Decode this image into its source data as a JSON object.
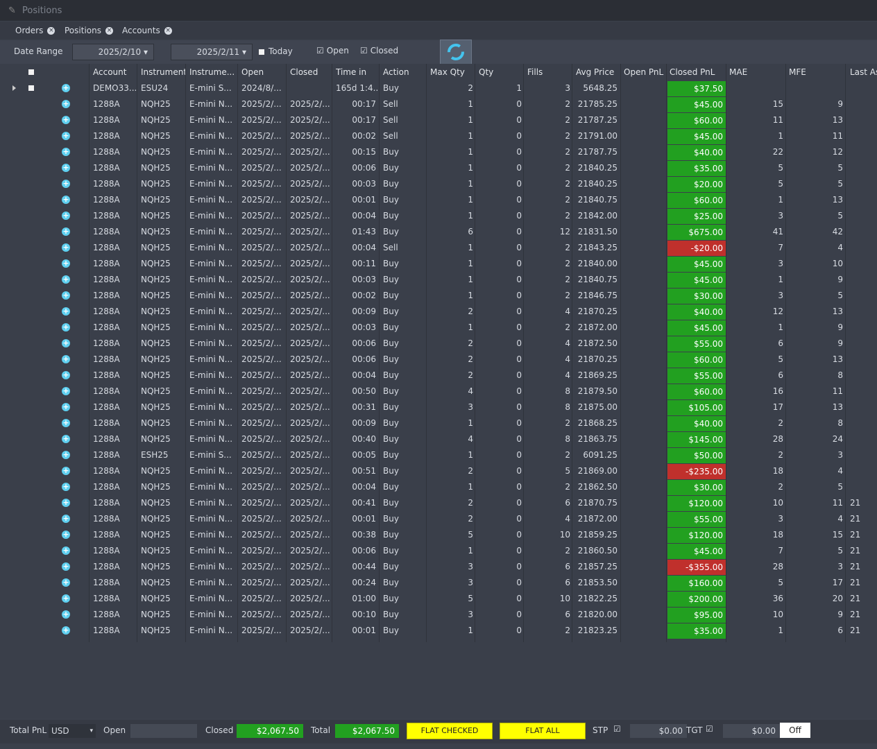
{
  "window": {
    "title": "Positions"
  },
  "tabs": [
    "Orders",
    "Positions",
    "Accounts"
  ],
  "filter": {
    "date_range_label": "Date Range",
    "from": "2025/2/10",
    "to": "2025/2/11",
    "today": "Today",
    "open": "Open",
    "closed": "Closed"
  },
  "table": {
    "columns": [
      "Account",
      "Instrument",
      "Instrume...",
      "Open",
      "Closed",
      "Time in",
      "Action",
      "Max Qty",
      "Qty",
      "Fills",
      "Avg Price",
      "Open PnL",
      "Closed PnL",
      "MAE",
      "MFE",
      "Last As"
    ],
    "rows": [
      [
        "DEMO33...",
        "ESU24",
        "E-mini S...",
        "2024/8/...",
        null,
        "165d 1:4...",
        "Buy",
        "2",
        "1",
        "3",
        "5648.25",
        null,
        "$37.50",
        null,
        null,
        null
      ],
      [
        "1288A",
        "NQH25",
        "E-mini N...",
        "2025/2/...",
        "2025/2/...",
        "00:17",
        "Sell",
        "1",
        "0",
        "2",
        "21785.25",
        null,
        "$45.00",
        "15",
        "9",
        null
      ],
      [
        "1288A",
        "NQH25",
        "E-mini N...",
        "2025/2/...",
        "2025/2/...",
        "00:17",
        "Sell",
        "1",
        "0",
        "2",
        "21787.25",
        null,
        "$60.00",
        "11",
        "13",
        null
      ],
      [
        "1288A",
        "NQH25",
        "E-mini N...",
        "2025/2/...",
        "2025/2/...",
        "00:02",
        "Sell",
        "1",
        "0",
        "2",
        "21791.00",
        null,
        "$45.00",
        "1",
        "11",
        null
      ],
      [
        "1288A",
        "NQH25",
        "E-mini N...",
        "2025/2/...",
        "2025/2/...",
        "00:15",
        "Buy",
        "1",
        "0",
        "2",
        "21787.75",
        null,
        "$40.00",
        "22",
        "12",
        null
      ],
      [
        "1288A",
        "NQH25",
        "E-mini N...",
        "2025/2/...",
        "2025/2/...",
        "00:06",
        "Buy",
        "1",
        "0",
        "2",
        "21840.25",
        null,
        "$35.00",
        "5",
        "5",
        null
      ],
      [
        "1288A",
        "NQH25",
        "E-mini N...",
        "2025/2/...",
        "2025/2/...",
        "00:03",
        "Buy",
        "1",
        "0",
        "2",
        "21840.25",
        null,
        "$20.00",
        "5",
        "5",
        null
      ],
      [
        "1288A",
        "NQH25",
        "E-mini N...",
        "2025/2/...",
        "2025/2/...",
        "00:01",
        "Buy",
        "1",
        "0",
        "2",
        "21840.75",
        null,
        "$60.00",
        "1",
        "13",
        null
      ],
      [
        "1288A",
        "NQH25",
        "E-mini N...",
        "2025/2/...",
        "2025/2/...",
        "00:04",
        "Buy",
        "1",
        "0",
        "2",
        "21842.00",
        null,
        "$25.00",
        "3",
        "5",
        null
      ],
      [
        "1288A",
        "NQH25",
        "E-mini N...",
        "2025/2/...",
        "2025/2/...",
        "01:43",
        "Buy",
        "6",
        "0",
        "12",
        "21831.50",
        null,
        "$675.00",
        "41",
        "42",
        null
      ],
      [
        "1288A",
        "NQH25",
        "E-mini N...",
        "2025/2/...",
        "2025/2/...",
        "00:04",
        "Sell",
        "1",
        "0",
        "2",
        "21843.25",
        null,
        "-$20.00",
        "7",
        "4",
        null
      ],
      [
        "1288A",
        "NQH25",
        "E-mini N...",
        "2025/2/...",
        "2025/2/...",
        "00:11",
        "Buy",
        "1",
        "0",
        "2",
        "21840.00",
        null,
        "$45.00",
        "3",
        "10",
        null
      ],
      [
        "1288A",
        "NQH25",
        "E-mini N...",
        "2025/2/...",
        "2025/2/...",
        "00:03",
        "Buy",
        "1",
        "0",
        "2",
        "21840.75",
        null,
        "$45.00",
        "1",
        "9",
        null
      ],
      [
        "1288A",
        "NQH25",
        "E-mini N...",
        "2025/2/...",
        "2025/2/...",
        "00:02",
        "Buy",
        "1",
        "0",
        "2",
        "21846.75",
        null,
        "$30.00",
        "3",
        "5",
        null
      ],
      [
        "1288A",
        "NQH25",
        "E-mini N...",
        "2025/2/...",
        "2025/2/...",
        "00:09",
        "Buy",
        "2",
        "0",
        "4",
        "21870.25",
        null,
        "$40.00",
        "12",
        "13",
        null
      ],
      [
        "1288A",
        "NQH25",
        "E-mini N...",
        "2025/2/...",
        "2025/2/...",
        "00:03",
        "Buy",
        "1",
        "0",
        "2",
        "21872.00",
        null,
        "$45.00",
        "1",
        "9",
        null
      ],
      [
        "1288A",
        "NQH25",
        "E-mini N...",
        "2025/2/...",
        "2025/2/...",
        "00:06",
        "Buy",
        "2",
        "0",
        "4",
        "21872.50",
        null,
        "$55.00",
        "6",
        "9",
        null
      ],
      [
        "1288A",
        "NQH25",
        "E-mini N...",
        "2025/2/...",
        "2025/2/...",
        "00:06",
        "Buy",
        "2",
        "0",
        "4",
        "21870.25",
        null,
        "$60.00",
        "5",
        "13",
        null
      ],
      [
        "1288A",
        "NQH25",
        "E-mini N...",
        "2025/2/...",
        "2025/2/...",
        "00:04",
        "Buy",
        "2",
        "0",
        "4",
        "21869.25",
        null,
        "$55.00",
        "6",
        "8",
        null
      ],
      [
        "1288A",
        "NQH25",
        "E-mini N...",
        "2025/2/...",
        "2025/2/...",
        "00:50",
        "Buy",
        "4",
        "0",
        "8",
        "21879.50",
        null,
        "$60.00",
        "16",
        "11",
        null
      ],
      [
        "1288A",
        "NQH25",
        "E-mini N...",
        "2025/2/...",
        "2025/2/...",
        "00:31",
        "Buy",
        "3",
        "0",
        "8",
        "21875.00",
        null,
        "$105.00",
        "17",
        "13",
        null
      ],
      [
        "1288A",
        "NQH25",
        "E-mini N...",
        "2025/2/...",
        "2025/2/...",
        "00:09",
        "Buy",
        "1",
        "0",
        "2",
        "21868.25",
        null,
        "$40.00",
        "2",
        "8",
        null
      ],
      [
        "1288A",
        "NQH25",
        "E-mini N...",
        "2025/2/...",
        "2025/2/...",
        "00:40",
        "Buy",
        "4",
        "0",
        "8",
        "21863.75",
        null,
        "$145.00",
        "28",
        "24",
        null
      ],
      [
        "1288A",
        "ESH25",
        "E-mini S...",
        "2025/2/...",
        "2025/2/...",
        "00:05",
        "Buy",
        "1",
        "0",
        "2",
        "6091.25",
        null,
        "$50.00",
        "2",
        "3",
        null
      ],
      [
        "1288A",
        "NQH25",
        "E-mini N...",
        "2025/2/...",
        "2025/2/...",
        "00:51",
        "Buy",
        "2",
        "0",
        "5",
        "21869.00",
        null,
        "-$235.00",
        "18",
        "4",
        null
      ],
      [
        "1288A",
        "NQH25",
        "E-mini N...",
        "2025/2/...",
        "2025/2/...",
        "00:04",
        "Buy",
        "1",
        "0",
        "2",
        "21862.50",
        null,
        "$30.00",
        "2",
        "5",
        null
      ],
      [
        "1288A",
        "NQH25",
        "E-mini N...",
        "2025/2/...",
        "2025/2/...",
        "00:41",
        "Buy",
        "2",
        "0",
        "6",
        "21870.75",
        null,
        "$120.00",
        "10",
        "11",
        "21"
      ],
      [
        "1288A",
        "NQH25",
        "E-mini N...",
        "2025/2/...",
        "2025/2/...",
        "00:01",
        "Buy",
        "2",
        "0",
        "4",
        "21872.00",
        null,
        "$55.00",
        "3",
        "4",
        "21"
      ],
      [
        "1288A",
        "NQH25",
        "E-mini N...",
        "2025/2/...",
        "2025/2/...",
        "00:38",
        "Buy",
        "5",
        "0",
        "10",
        "21859.25",
        null,
        "$120.00",
        "18",
        "15",
        "21"
      ],
      [
        "1288A",
        "NQH25",
        "E-mini N...",
        "2025/2/...",
        "2025/2/...",
        "00:06",
        "Buy",
        "1",
        "0",
        "2",
        "21860.50",
        null,
        "$45.00",
        "7",
        "5",
        "21"
      ],
      [
        "1288A",
        "NQH25",
        "E-mini N...",
        "2025/2/...",
        "2025/2/...",
        "00:44",
        "Buy",
        "3",
        "0",
        "6",
        "21857.25",
        null,
        "-$355.00",
        "28",
        "3",
        "21"
      ],
      [
        "1288A",
        "NQH25",
        "E-mini N...",
        "2025/2/...",
        "2025/2/...",
        "00:24",
        "Buy",
        "3",
        "0",
        "6",
        "21853.50",
        null,
        "$160.00",
        "5",
        "17",
        "21"
      ],
      [
        "1288A",
        "NQH25",
        "E-mini N...",
        "2025/2/...",
        "2025/2/...",
        "01:00",
        "Buy",
        "5",
        "0",
        "10",
        "21822.25",
        null,
        "$200.00",
        "36",
        "20",
        "21"
      ],
      [
        "1288A",
        "NQH25",
        "E-mini N...",
        "2025/2/...",
        "2025/2/...",
        "00:10",
        "Buy",
        "3",
        "0",
        "6",
        "21820.00",
        null,
        "$95.00",
        "10",
        "9",
        "21"
      ],
      [
        "1288A",
        "NQH25",
        "E-mini N...",
        "2025/2/...",
        "2025/2/...",
        "00:01",
        "Buy",
        "1",
        "0",
        "2",
        "21823.25",
        null,
        "$35.00",
        "1",
        "6",
        "21"
      ]
    ]
  },
  "footer": {
    "total_pnl_label": "Total PnL",
    "currency": "USD",
    "open_label": "Open",
    "closed_label": "Closed",
    "closed_value": "$2,067.50",
    "total_label": "Total",
    "total_value": "$2,067.50",
    "flat_checked": "FLAT CHECKED",
    "flat_all": "FLAT ALL",
    "stp_label": "STP",
    "stp_value": "$0.00",
    "tgt_label": "TGT",
    "tgt_value": "$0.00",
    "toggle": "Off"
  }
}
